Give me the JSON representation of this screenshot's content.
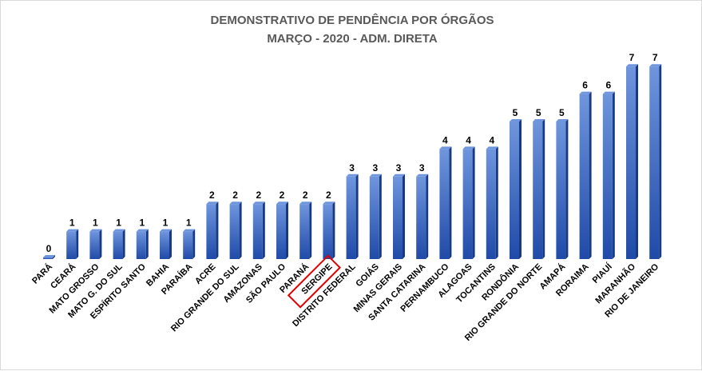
{
  "chart_data": {
    "type": "bar",
    "title": "DEMONSTRATIVO DE PENDÊNCIA POR ÓRGÃOS",
    "subtitle": "MARÇO - 2020 - ADM. DIRETA",
    "xlabel": "",
    "ylabel": "",
    "ylim": [
      0,
      7
    ],
    "grid": false,
    "legend": "none",
    "categories": [
      "PARÁ",
      "CEARÁ",
      "MATO GROSSO",
      "MATO G. DO SUL",
      "ESPÍRITO SANTO",
      "BAHIA",
      "PARAÍBA",
      "ACRE",
      "RIO GRANDE DO SUL",
      "AMAZONAS",
      "SÃO PAULO",
      "PARANÁ",
      "SERGIPE",
      "DISTRITO FEDERAL",
      "GOIÁS",
      "MINAS GERAIS",
      "SANTA CATARINA",
      "PERNAMBUCO",
      "ALAGOAS",
      "TOCANTINS",
      "RONDÔNIA",
      "RIO GRANDE DO NORTE",
      "AMAPÁ",
      "RORAIMA",
      "PIAUÍ",
      "MARANHÃO",
      "RIO DE JANEIRO"
    ],
    "values": [
      0,
      1,
      1,
      1,
      1,
      1,
      1,
      2,
      2,
      2,
      2,
      2,
      2,
      3,
      3,
      3,
      3,
      4,
      4,
      4,
      5,
      5,
      5,
      6,
      6,
      7,
      7
    ],
    "highlighted_category": "SERGIPE",
    "colors": {
      "bar_top": "#6f95dd",
      "bar_bottom": "#1f4aa8",
      "bar_side": "#173a85",
      "highlight_box": "#e00000",
      "title": "#595959"
    }
  }
}
